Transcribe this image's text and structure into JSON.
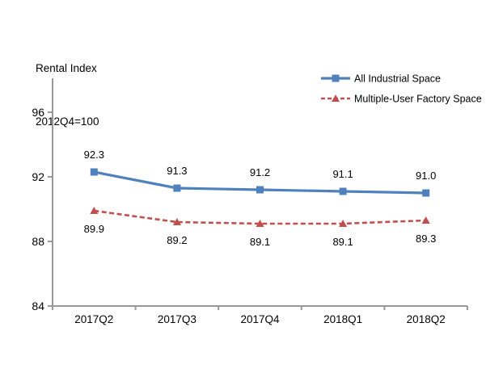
{
  "chart_data": {
    "type": "line",
    "title": "Rental Index",
    "subtitle": "2012Q4=100",
    "categories": [
      "2017Q2",
      "2017Q3",
      "2017Q4",
      "2018Q1",
      "2018Q2"
    ],
    "series": [
      {
        "name": "All Industrial Space",
        "values": [
          92.3,
          91.3,
          91.2,
          91.1,
          91.0
        ],
        "labels": [
          "92.3",
          "91.3",
          "91.2",
          "91.1",
          "91.0"
        ],
        "color": "#4F81BD",
        "marker": "square",
        "line_style": "solid",
        "label_position": "above"
      },
      {
        "name": "Multiple-User Factory Space",
        "values": [
          89.9,
          89.2,
          89.1,
          89.1,
          89.3
        ],
        "labels": [
          "89.9",
          "89.2",
          "89.1",
          "89.1",
          "89.3"
        ],
        "color": "#C0504D",
        "marker": "triangle",
        "line_style": "dashed",
        "label_position": "below"
      }
    ],
    "ylim": [
      84,
      98
    ],
    "yticks": [
      84,
      88,
      92,
      96
    ],
    "grid": false,
    "legend_position": "top-right",
    "axis_color": "#999999",
    "text_color": "#000000"
  }
}
